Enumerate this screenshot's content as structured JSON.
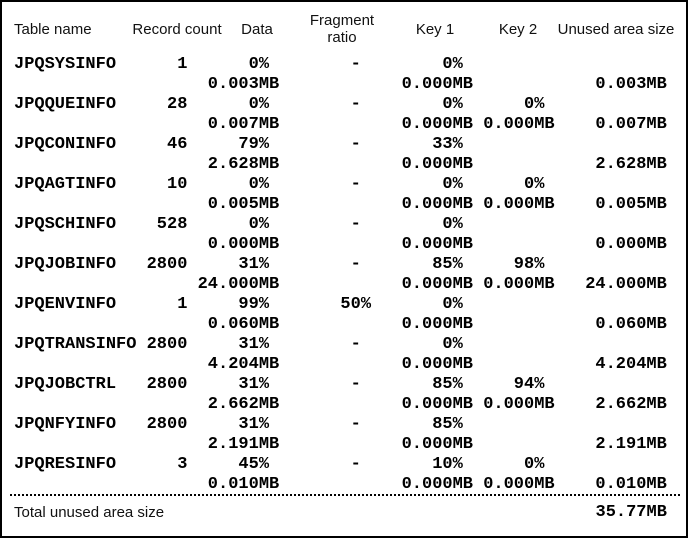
{
  "header": {
    "table_name": "Table name",
    "record_count": "Record count",
    "data": "Data",
    "fragment_ratio": "Fragment ratio",
    "key1": "Key 1",
    "key2": "Key 2",
    "unused": "Unused area size"
  },
  "rows": [
    {
      "name": "JPQSYSINFO",
      "records": "1",
      "data_pct": "0%",
      "data_mb": "0.003MB",
      "fragment": "-",
      "key1_pct": "0%",
      "key1_mb": "0.000MB",
      "key2_pct": "",
      "key2_mb": "",
      "unused_mb": "0.003MB"
    },
    {
      "name": "JPQQUEINFO",
      "records": "28",
      "data_pct": "0%",
      "data_mb": "0.007MB",
      "fragment": "-",
      "key1_pct": "0%",
      "key1_mb": "0.000MB",
      "key2_pct": "0%",
      "key2_mb": "0.000MB",
      "unused_mb": "0.007MB"
    },
    {
      "name": "JPQCONINFO",
      "records": "46",
      "data_pct": "79%",
      "data_mb": "2.628MB",
      "fragment": "-",
      "key1_pct": "33%",
      "key1_mb": "0.000MB",
      "key2_pct": "",
      "key2_mb": "",
      "unused_mb": "2.628MB"
    },
    {
      "name": "JPQAGTINFO",
      "records": "10",
      "data_pct": "0%",
      "data_mb": "0.005MB",
      "fragment": "-",
      "key1_pct": "0%",
      "key1_mb": "0.000MB",
      "key2_pct": "0%",
      "key2_mb": "0.000MB",
      "unused_mb": "0.005MB"
    },
    {
      "name": "JPQSCHINFO",
      "records": "528",
      "data_pct": "0%",
      "data_mb": "0.000MB",
      "fragment": "-",
      "key1_pct": "0%",
      "key1_mb": "0.000MB",
      "key2_pct": "",
      "key2_mb": "",
      "unused_mb": "0.000MB"
    },
    {
      "name": "JPQJOBINFO",
      "records": "2800",
      "data_pct": "31%",
      "data_mb": "24.000MB",
      "fragment": "-",
      "key1_pct": "85%",
      "key1_mb": "0.000MB",
      "key2_pct": "98%",
      "key2_mb": "0.000MB",
      "unused_mb": "24.000MB"
    },
    {
      "name": "JPQENVINFO",
      "records": "1",
      "data_pct": "99%",
      "data_mb": "0.060MB",
      "fragment": "50%",
      "key1_pct": "0%",
      "key1_mb": "0.000MB",
      "key2_pct": "",
      "key2_mb": "",
      "unused_mb": "0.060MB"
    },
    {
      "name": "JPQTRANSINFO",
      "records": "2800",
      "data_pct": "31%",
      "data_mb": "4.204MB",
      "fragment": "-",
      "key1_pct": "0%",
      "key1_mb": "0.000MB",
      "key2_pct": "",
      "key2_mb": "",
      "unused_mb": "4.204MB"
    },
    {
      "name": "JPQJOBCTRL",
      "records": "2800",
      "data_pct": "31%",
      "data_mb": "2.662MB",
      "fragment": "-",
      "key1_pct": "85%",
      "key1_mb": "0.000MB",
      "key2_pct": "94%",
      "key2_mb": "0.000MB",
      "unused_mb": "2.662MB"
    },
    {
      "name": "JPQNFYINFO",
      "records": "2800",
      "data_pct": "31%",
      "data_mb": "2.191MB",
      "fragment": "-",
      "key1_pct": "85%",
      "key1_mb": "0.000MB",
      "key2_pct": "",
      "key2_mb": "",
      "unused_mb": "2.191MB"
    },
    {
      "name": "JPQRESINFO",
      "records": "3",
      "data_pct": "45%",
      "data_mb": "0.010MB",
      "fragment": "-",
      "key1_pct": "10%",
      "key1_mb": "0.000MB",
      "key2_pct": "0%",
      "key2_mb": "0.000MB",
      "unused_mb": "0.010MB"
    }
  ],
  "total": {
    "label": "Total unused area size",
    "value": "35.77MB"
  },
  "colors": {
    "text": "#000000",
    "background": "#ffffff",
    "border": "#000000"
  }
}
